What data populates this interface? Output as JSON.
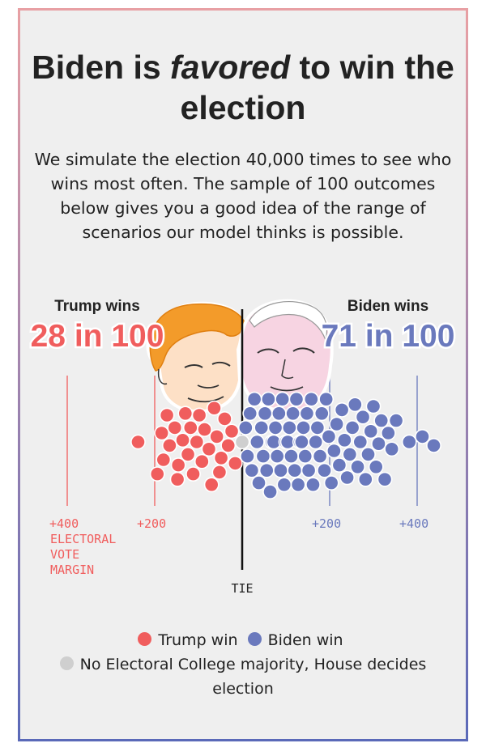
{
  "title": {
    "prefix": "Biden is ",
    "emph": "favored",
    "suffix": " to win the election"
  },
  "subtitle": "We simulate the election 40,000 times to see who wins most often. The sample of 100 outcomes below gives you a good idea of the range of scenarios our model thinks is possible.",
  "left_header": {
    "label": "Trump wins",
    "value": "28 in 100"
  },
  "right_header": {
    "label": "Biden wins",
    "value": "71 in 100"
  },
  "legend": {
    "trump": "Trump win",
    "biden": "Biden win",
    "house": "No Electoral College majority, House decides election"
  },
  "colors": {
    "trump": "#f05d5d",
    "biden": "#6a79bd",
    "house": "#cfcfcf",
    "text": "#222222"
  },
  "icons": [
    "trump-caricature-icon",
    "biden-caricature-icon"
  ],
  "chart_data": {
    "type": "scatter",
    "title": "",
    "x_axis": {
      "label": "ELECTORAL VOTE MARGIN",
      "center_label": "TIE",
      "range": [
        -538,
        538
      ],
      "ticks": [
        {
          "value": -400,
          "label": "+400"
        },
        {
          "value": -200,
          "label": "+200"
        },
        {
          "value": 200,
          "label": "+200"
        },
        {
          "value": 400,
          "label": "+400"
        }
      ]
    },
    "series": [
      {
        "name": "Trump win",
        "key": "trump",
        "count": 28,
        "margins": [
          -238,
          -194,
          -184,
          -180,
          -172,
          -166,
          -154,
          -148,
          -146,
          -136,
          -130,
          -124,
          -118,
          -112,
          -104,
          -98,
          -92,
          -86,
          -76,
          -70,
          -64,
          -58,
          -52,
          -48,
          -40,
          -32,
          -24,
          -16
        ]
      },
      {
        "name": "No Electoral College majority, House decides election",
        "key": "house",
        "count": 1,
        "margins": [
          0
        ]
      },
      {
        "name": "Biden win",
        "key": "biden",
        "count": 71,
        "margins": [
          8,
          12,
          18,
          22,
          28,
          34,
          38,
          44,
          48,
          52,
          56,
          60,
          64,
          68,
          72,
          76,
          80,
          84,
          88,
          92,
          96,
          100,
          104,
          108,
          112,
          116,
          120,
          124,
          128,
          132,
          136,
          140,
          144,
          148,
          152,
          158,
          162,
          168,
          172,
          178,
          182,
          188,
          192,
          198,
          204,
          210,
          216,
          222,
          228,
          234,
          240,
          246,
          252,
          258,
          264,
          270,
          276,
          282,
          288,
          294,
          300,
          306,
          312,
          318,
          326,
          334,
          342,
          352,
          382,
          412,
          438
        ]
      }
    ]
  }
}
